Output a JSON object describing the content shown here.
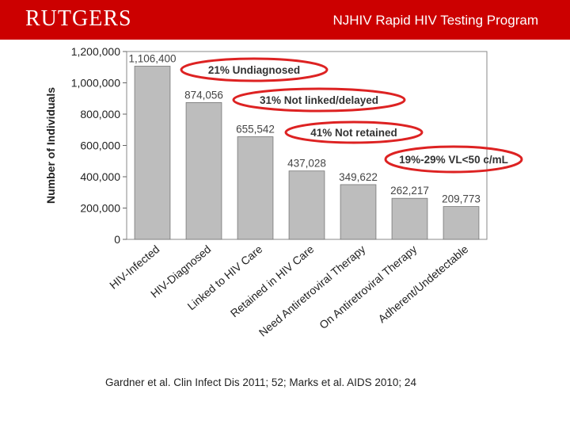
{
  "header": {
    "logo_text": "RUTGERS",
    "title": "NJHIV Rapid HIV Testing Program",
    "color": "#cc0000"
  },
  "chart_data": {
    "type": "bar",
    "ylabel": "Number of Individuals",
    "ylim": [
      0,
      1200000
    ],
    "yticks": [
      "0",
      "200,000",
      "400,000",
      "600,000",
      "800,000",
      "1,000,000",
      "1,200,000"
    ],
    "categories": [
      "HIV-Infected",
      "HIV-Diagnosed",
      "Linked to HIV Care",
      "Retained in HIV Care",
      "Need Antiretroviral Therapy",
      "On Antiretroviral Therapy",
      "Adherent/Undetectable"
    ],
    "values": [
      1106400,
      874056,
      655542,
      437028,
      349622,
      262217,
      209773
    ],
    "data_labels": [
      "1,106,400",
      "874,056",
      "655,542",
      "437,028",
      "349,622",
      "262,217",
      "209,773"
    ],
    "bar_color": "#bdbdbd",
    "annotations": [
      {
        "text": "21% Undiagnosed"
      },
      {
        "text": "31% Not linked/delayed"
      },
      {
        "text": "41% Not retained"
      },
      {
        "text": "19%-29% VL<50 c/mL"
      }
    ],
    "annotation_outline_color": "#dd2222"
  },
  "citation": "Gardner et al. Clin Infect Dis 2011; 52; Marks et al. AIDS 2010; 24"
}
